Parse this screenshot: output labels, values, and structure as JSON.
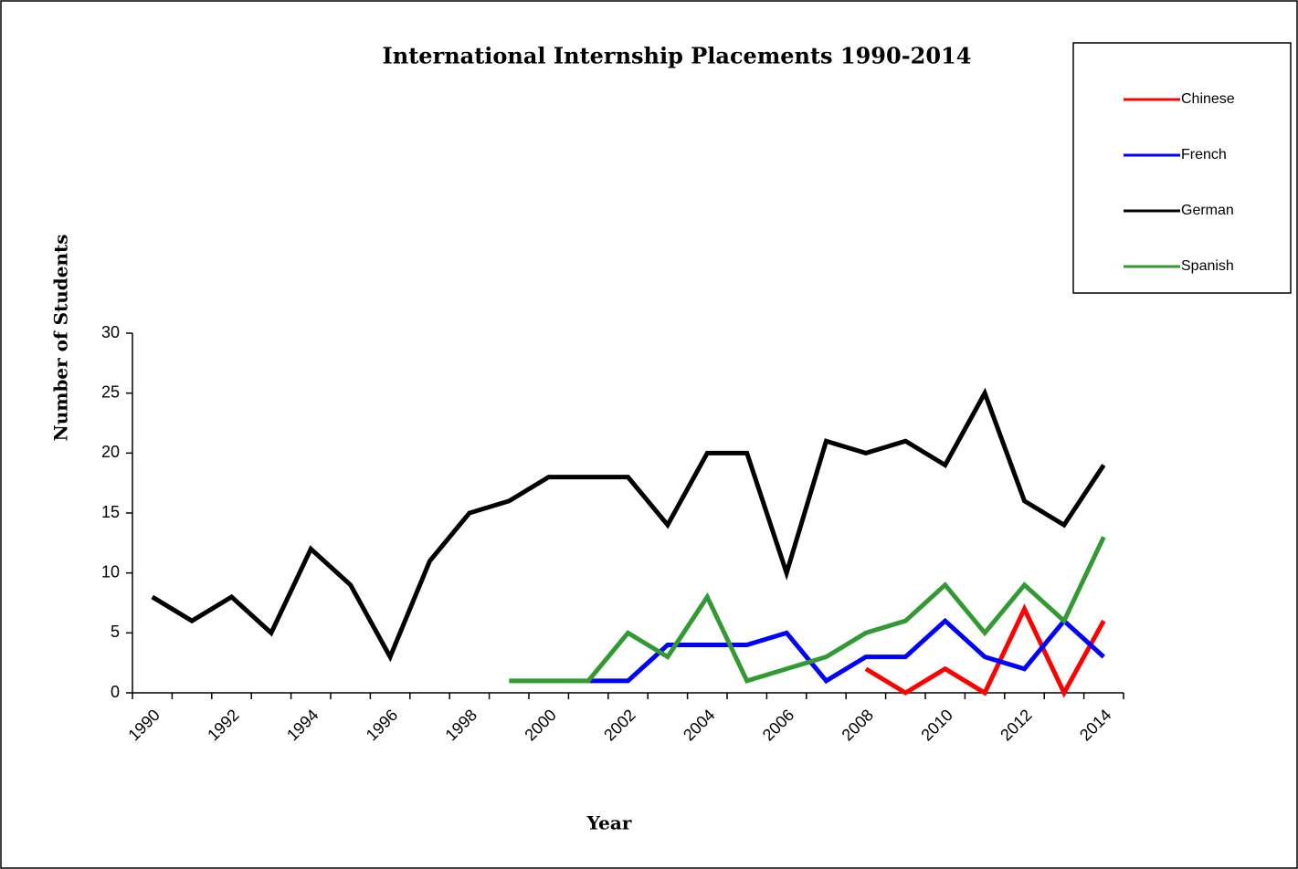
{
  "chart_data": {
    "type": "line",
    "title": "International Internship Placements 1990-2014",
    "xlabel": "Year",
    "ylabel": "Number of Students",
    "categories": [
      "1990",
      null,
      "1992",
      null,
      "1994",
      null,
      "1996",
      null,
      "1998",
      null,
      "2000",
      null,
      "2002",
      null,
      "2004",
      null,
      "2006",
      null,
      "2008",
      null,
      "2010",
      null,
      "2012",
      null,
      "2014"
    ],
    "series": [
      {
        "name": "Chinese",
        "color": "#ff0000",
        "values": [
          null,
          null,
          null,
          null,
          null,
          null,
          null,
          null,
          null,
          null,
          null,
          null,
          null,
          null,
          null,
          null,
          null,
          null,
          2,
          0,
          2,
          0,
          7,
          0,
          6
        ]
      },
      {
        "name": "French",
        "color": "#0000ff",
        "values": [
          null,
          null,
          null,
          null,
          null,
          null,
          null,
          null,
          null,
          null,
          null,
          1,
          1,
          4,
          4,
          4,
          5,
          1,
          3,
          3,
          6,
          3,
          2,
          6,
          3
        ]
      },
      {
        "name": "German",
        "color": "#000000",
        "values": [
          8,
          6,
          8,
          5,
          12,
          9,
          3,
          11,
          15,
          16,
          18,
          18,
          18,
          14,
          20,
          20,
          10,
          21,
          20,
          21,
          19,
          25,
          16,
          14,
          19
        ]
      },
      {
        "name": "Spanish",
        "color": "#339933",
        "values": [
          null,
          null,
          null,
          null,
          null,
          null,
          null,
          null,
          null,
          1,
          1,
          1,
          5,
          3,
          8,
          1,
          2,
          3,
          5,
          6,
          9,
          5,
          9,
          6,
          13
        ]
      }
    ],
    "ylim": [
      0,
      30
    ],
    "yticks": [
      0,
      5,
      10,
      15,
      20,
      25,
      30
    ],
    "legend": "upper right"
  }
}
